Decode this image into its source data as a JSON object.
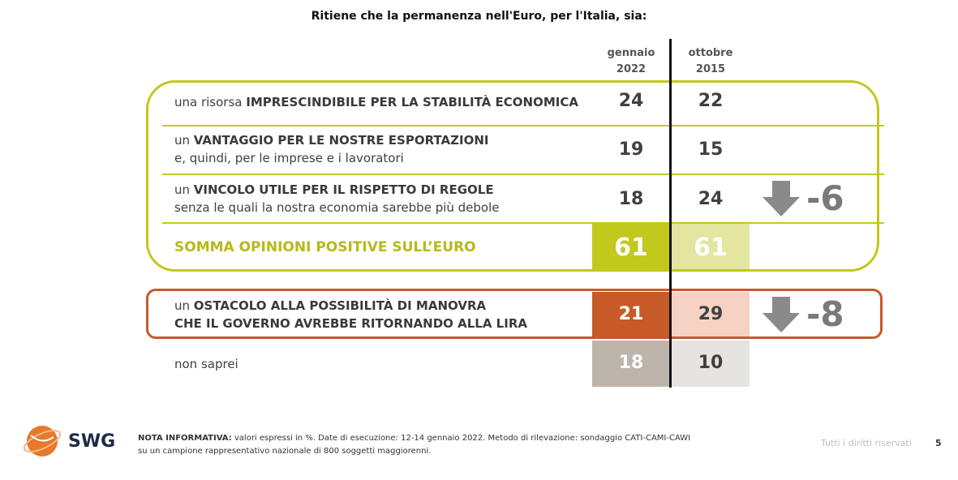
{
  "title": "Ritiene che la permanenza nell'Euro, per l'Italia, sia:",
  "columns": [
    {
      "line1": "gennaio",
      "line2": "2022"
    },
    {
      "line1": "ottobre",
      "line2": "2015"
    }
  ],
  "rows": [
    {
      "pre": "una risorsa ",
      "bold": "IMPRESCINDIBILE PER LA STABILITÀ ECONOMICA",
      "sub": "",
      "a": "24",
      "b": "22",
      "delta": ""
    },
    {
      "pre": "un ",
      "bold": "VANTAGGIO PER LE NOSTRE ESPORTAZIONI",
      "sub": "e, quindi, per le imprese e i lavoratori",
      "a": "19",
      "b": "15",
      "delta": ""
    },
    {
      "pre": "un ",
      "bold": "VINCOLO UTILE PER IL RISPETTO DI REGOLE",
      "sub": "senza le quali la nostra economia sarebbe più debole",
      "a": "18",
      "b": "24",
      "delta": "-6"
    }
  ],
  "somma": {
    "label": "SOMMA OPINIONI POSITIVE SULL’EURO",
    "a": "61",
    "b": "61"
  },
  "ostacolo": {
    "pre": "un ",
    "bold": "OSTACOLO ALLA POSSIBILITÀ DI MANOVRA",
    "bold2": "CHE IL GOVERNO AVREBBE RITORNANDO ALLA LIRA",
    "a": "21",
    "b": "29",
    "delta": "-8"
  },
  "nonsaprei": {
    "label": "non saprei",
    "a": "18",
    "b": "10"
  },
  "footer": {
    "note_bold": "NOTA INFORMATIVA:",
    "note_line1": " valori espressi in %. Date di esecuzione: 12-14 gennaio 2022. Metodo di rilevazione: sondaggio CATI-CAMI-CAWI",
    "note_line2": "su un campione rappresentativo nazionale di 800 soggetti maggiorenni.",
    "rights": "Tutti i diritti riservati",
    "page": "5",
    "logo": "SWG"
  },
  "colors": {
    "green": "#c3c81c",
    "green_light": "#e3e6a0",
    "orange": "#c65a28",
    "orange_light": "#f6d2c2",
    "grey": "#bdb4ac",
    "grey_light": "#e6e3e0",
    "arrow": "#8a8a8a"
  },
  "chart_data": {
    "type": "table",
    "title": "Ritiene che la permanenza nell'Euro, per l'Italia, sia:",
    "columns": [
      "gennaio 2022",
      "ottobre 2015"
    ],
    "rows": [
      {
        "label": "una risorsa IMPRESCINDIBILE PER LA STABILITÀ ECONOMICA",
        "values": [
          24,
          22
        ]
      },
      {
        "label": "un VANTAGGIO PER LE NOSTRE ESPORTAZIONI e, quindi, per le imprese e i lavoratori",
        "values": [
          19,
          15
        ]
      },
      {
        "label": "un VINCOLO UTILE PER IL RISPETTO DI REGOLE senza le quali la nostra economia sarebbe più debole",
        "values": [
          18,
          24
        ],
        "delta": -6
      },
      {
        "label": "SOMMA OPINIONI POSITIVE SULL’EURO",
        "values": [
          61,
          61
        ]
      },
      {
        "label": "un OSTACOLO ALLA POSSIBILITÀ DI MANOVRA CHE IL GOVERNO AVREBBE RITORNANDO ALLA LIRA",
        "values": [
          21,
          29
        ],
        "delta": -8
      },
      {
        "label": "non saprei",
        "values": [
          18,
          10
        ]
      }
    ]
  }
}
